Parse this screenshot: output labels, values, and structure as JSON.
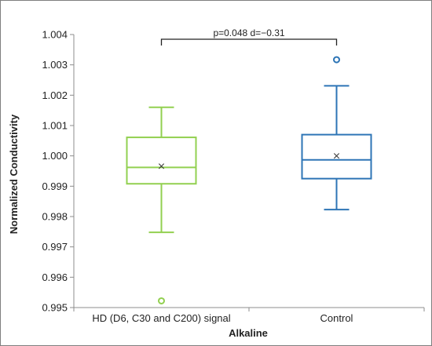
{
  "chart_data": {
    "type": "box",
    "xlabel": "Alkaline",
    "ylabel": "Normalized Conductivity",
    "ylim": [
      0.995,
      1.004
    ],
    "yticks": [
      "0.995",
      "0.996",
      "0.997",
      "0.998",
      "0.999",
      "1.000",
      "1.001",
      "1.002",
      "1.003",
      "1.004"
    ],
    "grid": false,
    "annotation": "p=0.048   d=−0.31",
    "series": [
      {
        "category": "HD (D6, C30 and C200) signal",
        "color": "#92d050",
        "whisker_low": 0.99748,
        "q1": 0.99908,
        "median": 0.99962,
        "q3": 1.00061,
        "whisker_high": 1.0016,
        "mean": 0.99966,
        "outliers": [
          0.99522
        ]
      },
      {
        "category": "Control",
        "color": "#2e75b6",
        "whisker_low": 0.99823,
        "q1": 0.99925,
        "median": 0.99987,
        "q3": 1.0007,
        "whisker_high": 1.00231,
        "mean": 1.0,
        "outliers": [
          1.00317
        ]
      }
    ]
  }
}
